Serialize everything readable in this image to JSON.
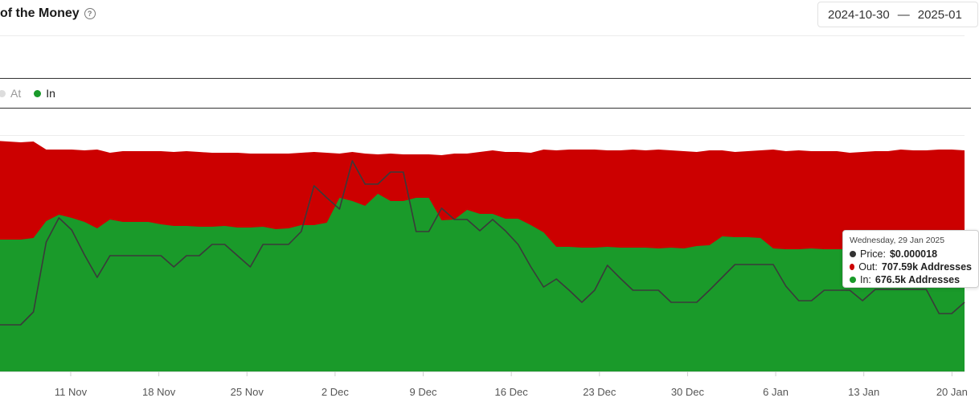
{
  "header": {
    "title": "of the Money",
    "date_start": "2024-10-30",
    "date_sep": "—",
    "date_end": "2025-01"
  },
  "legend": [
    {
      "label": "At",
      "color": "#dddddd",
      "text_color": "#999999"
    },
    {
      "label": "In",
      "color": "#1a9a2a",
      "text_color": "#222222"
    }
  ],
  "tooltip": {
    "date": "Wednesday, 29 Jan 2025",
    "price_label": "Price:",
    "price_value": "$0.000018",
    "out_label": "Out:",
    "out_value": "707.59k Addresses",
    "in_label": "In:",
    "in_value": "676.5k Addresses"
  },
  "chart_data": {
    "type": "area",
    "x_start": "2024-11-05",
    "x_end": "2025-01-21",
    "x_ticks": [
      "11 Nov",
      "18 Nov",
      "25 Nov",
      "2 Dec",
      "9 Dec",
      "16 Dec",
      "23 Dec",
      "30 Dec",
      "6 Jan",
      "13 Jan",
      "20 Jan"
    ],
    "colors": {
      "out": "#cc0000",
      "in": "#1a9a2a",
      "price": "#3a3a3a"
    },
    "series": [
      {
        "name": "Out",
        "values": [
          287,
          286,
          285,
          286,
          276,
          276,
          276,
          275,
          276,
          272,
          274,
          274,
          274,
          274,
          273,
          274,
          273,
          272,
          272,
          272,
          271,
          271,
          271,
          271,
          272,
          273,
          272,
          271,
          273,
          271,
          270,
          271,
          270,
          270,
          270,
          269,
          271,
          271,
          273,
          275,
          273,
          273,
          272,
          276,
          275,
          276,
          276,
          276,
          275,
          275,
          276,
          275,
          276,
          275,
          274,
          273,
          275,
          275,
          273,
          274,
          275,
          276,
          274,
          275,
          274,
          274,
          274,
          272,
          273,
          274,
          274,
          276,
          275,
          275,
          276,
          276,
          275
        ]
      },
      {
        "name": "In",
        "values": [
          164,
          164,
          164,
          166,
          187,
          195,
          191,
          186,
          178,
          189,
          186,
          186,
          186,
          183,
          181,
          181,
          180,
          180,
          181,
          179,
          179,
          180,
          177,
          178,
          182,
          182,
          185,
          216,
          212,
          206,
          221,
          212,
          212,
          216,
          216,
          188,
          189,
          201,
          196,
          196,
          190,
          190,
          182,
          173,
          155,
          155,
          154,
          154,
          155,
          154,
          154,
          154,
          153,
          154,
          153,
          156,
          157,
          168,
          167,
          167,
          166,
          153,
          152,
          152,
          153,
          152,
          152,
          152,
          154,
          154,
          154,
          155,
          153,
          154,
          155,
          153,
          154
        ]
      },
      {
        "name": "Price",
        "values": [
          58,
          58,
          58,
          74,
          161,
          191,
          176,
          145,
          117,
          144,
          144,
          144,
          144,
          144,
          130,
          144,
          144,
          158,
          158,
          144,
          130,
          158,
          158,
          158,
          174,
          231,
          216,
          202,
          262,
          233,
          233,
          248,
          248,
          174,
          174,
          203,
          189,
          189,
          175,
          189,
          175,
          158,
          130,
          105,
          115,
          101,
          86,
          101,
          132,
          116,
          101,
          101,
          101,
          86,
          86,
          86,
          101,
          117,
          133,
          133,
          133,
          133,
          106,
          88,
          88,
          101,
          101,
          101,
          88,
          102,
          102,
          102,
          102,
          102,
          72,
          72,
          86
        ]
      }
    ],
    "ylim": [
      0,
      300
    ]
  }
}
